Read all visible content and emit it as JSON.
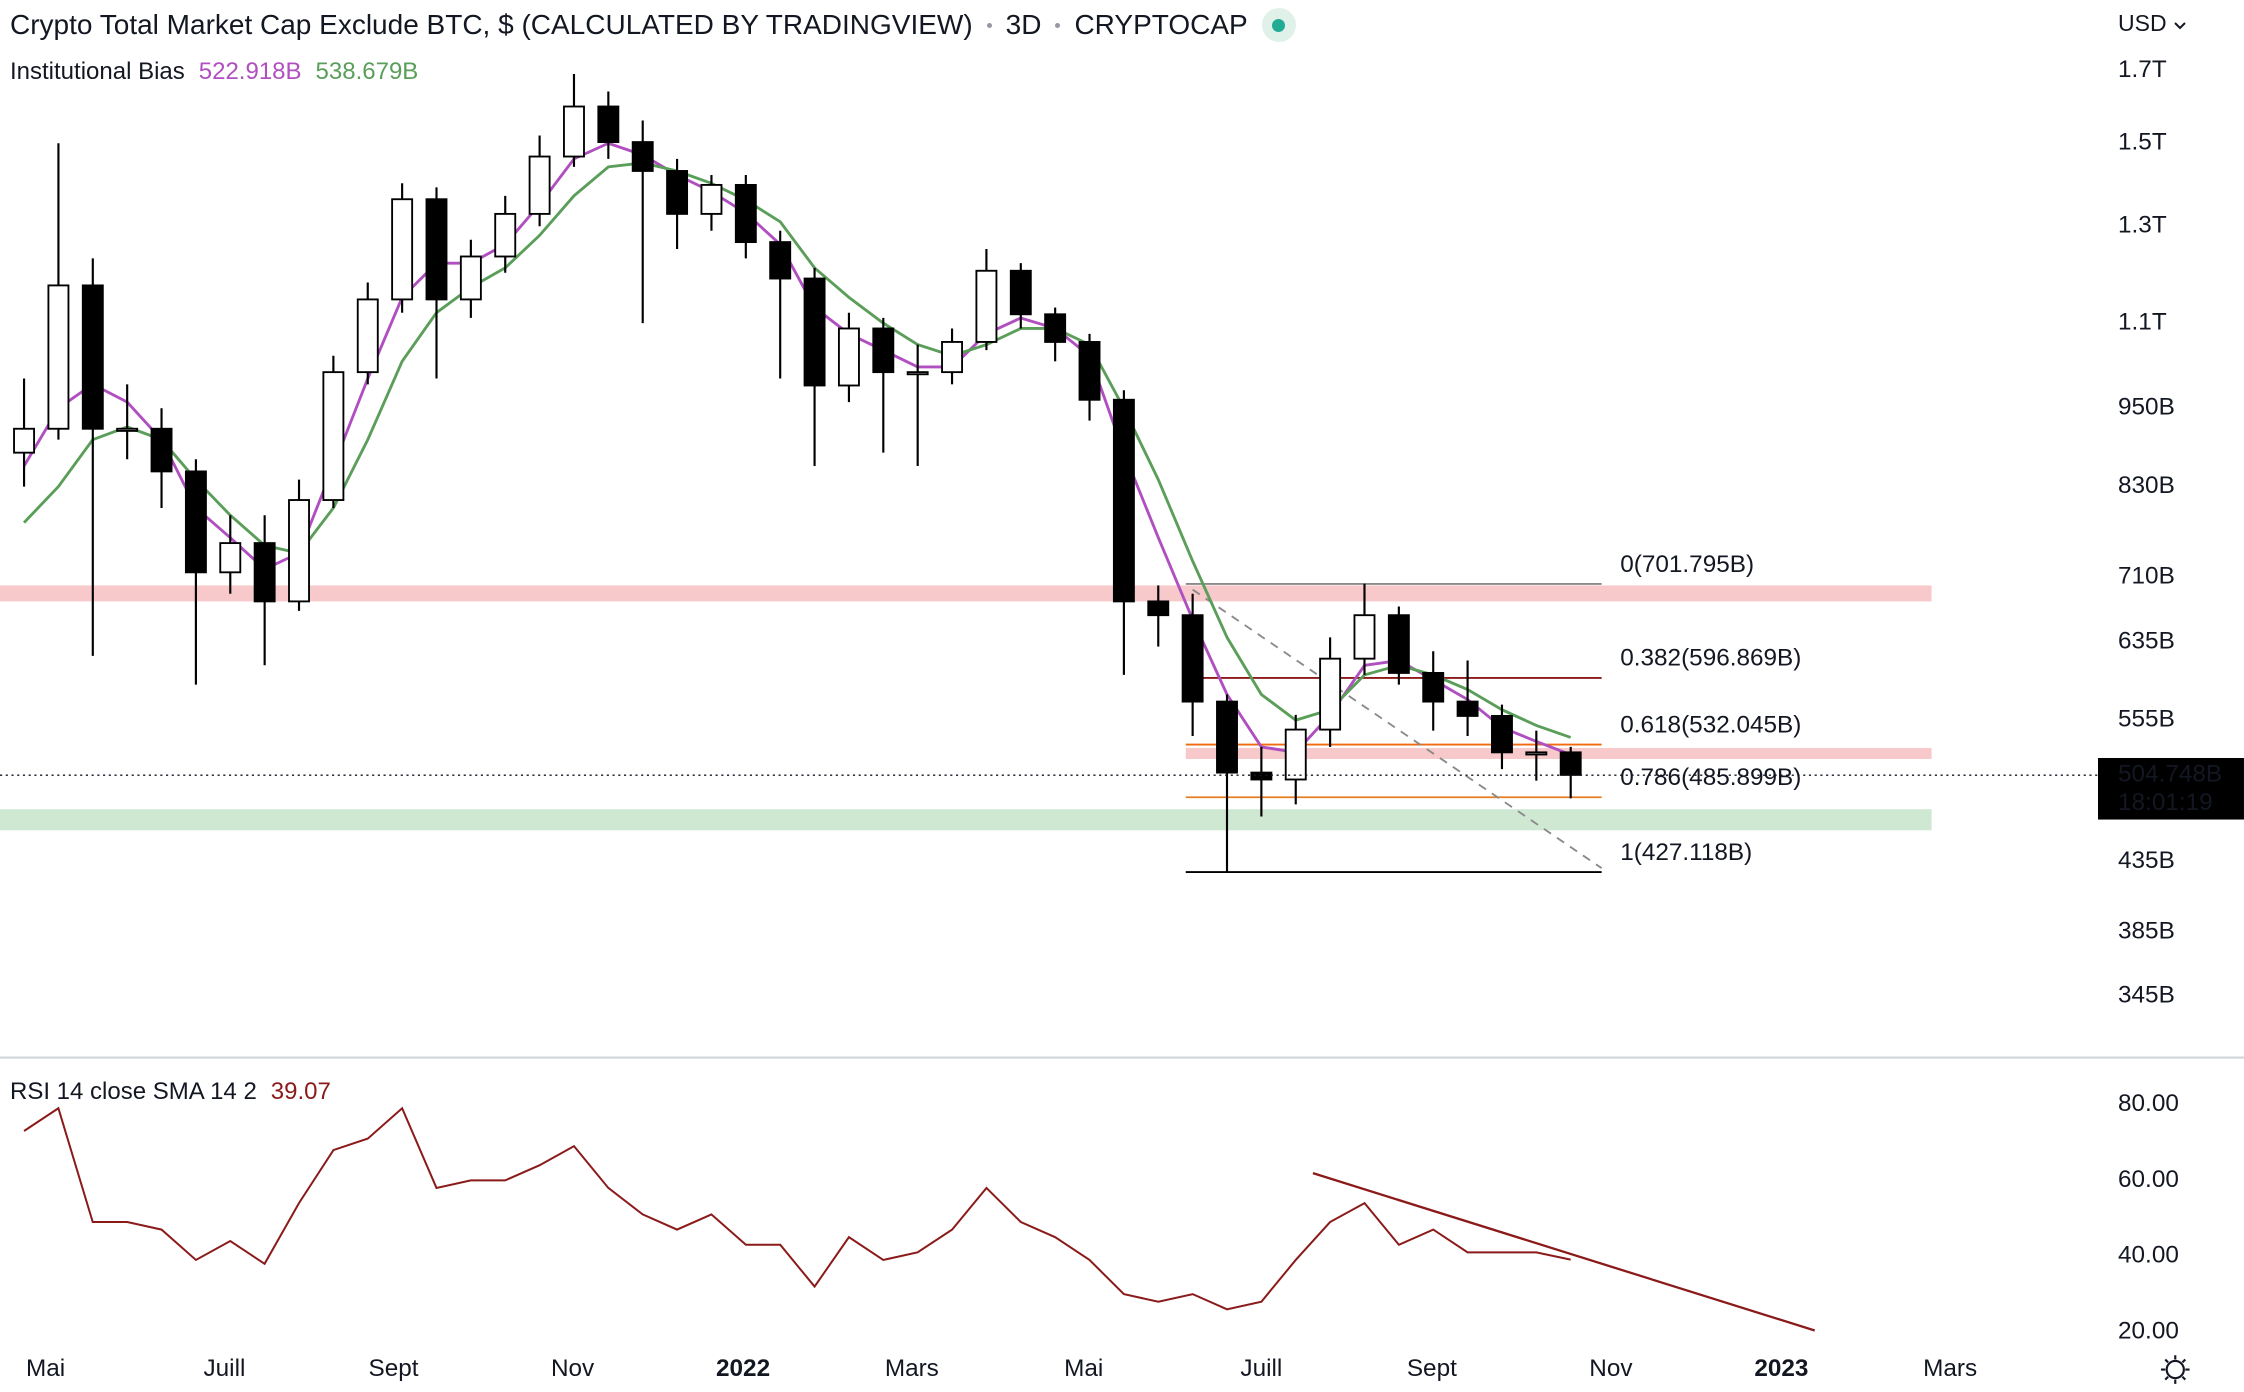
{
  "chart_data": [
    {
      "type": "candlestick",
      "title": "Crypto Total Market Cap Exclude BTC, $ (CALCULATED BY TRADINGVIEW)",
      "interval": "3D",
      "exchange": "CRYPTOCAP",
      "currency": "USD",
      "log_scale": true,
      "ylim": [
        311,
        1920
      ],
      "yticks": [
        {
          "value": 1700,
          "label": "1.7T"
        },
        {
          "value": 1500,
          "label": "1.5T"
        },
        {
          "value": 1300,
          "label": "1.3T"
        },
        {
          "value": 1100,
          "label": "1.1T"
        },
        {
          "value": 950,
          "label": "950B"
        },
        {
          "value": 830,
          "label": "830B"
        },
        {
          "value": 710,
          "label": "710B"
        },
        {
          "value": 635,
          "label": "635B"
        },
        {
          "value": 555,
          "label": "555B"
        },
        {
          "value": 435,
          "label": "435B"
        },
        {
          "value": 385,
          "label": "385B"
        },
        {
          "value": 345,
          "label": "345B"
        }
      ],
      "xlim": [
        -0.7,
        60.3
      ],
      "open": [
        880,
        917,
        1174,
        917,
        917,
        852,
        716,
        753,
        681,
        811,
        1011,
        1146,
        1362,
        1146,
        1234,
        1328,
        1466,
        1598,
        1503,
        1430,
        1328,
        1396,
        1265,
        1188,
        988,
        1090,
        1011,
        1011,
        1065,
        1204,
        1117,
        1065,
        964,
        681,
        665,
        573,
        507,
        501,
        546,
        617,
        665,
        602,
        573,
        559,
        525,
        525
      ],
      "high": [
        1000,
        1500,
        1230,
        990,
        950,
        870,
        790,
        790,
        840,
        1040,
        1180,
        1400,
        1390,
        1270,
        1370,
        1520,
        1690,
        1640,
        1560,
        1460,
        1420,
        1420,
        1290,
        1210,
        1120,
        1110,
        1060,
        1090,
        1250,
        1220,
        1130,
        1080,
        980,
        700,
        690,
        580,
        530,
        560,
        640,
        702,
        675,
        625,
        615,
        570,
        545,
        530
      ],
      "low": [
        830,
        900,
        620,
        870,
        800,
        590,
        690,
        610,
        670,
        800,
        990,
        1120,
        1000,
        1110,
        1200,
        1300,
        1440,
        1460,
        1100,
        1250,
        1290,
        1230,
        1000,
        860,
        960,
        880,
        860,
        990,
        1050,
        1090,
        1030,
        930,
        600,
        630,
        540,
        427,
        470,
        480,
        530,
        600,
        590,
        545,
        540,
        510,
        500,
        485
      ],
      "close": [
        917,
        1174,
        917,
        917,
        852,
        716,
        753,
        681,
        811,
        1011,
        1146,
        1362,
        1146,
        1234,
        1328,
        1466,
        1598,
        1503,
        1430,
        1328,
        1396,
        1265,
        1188,
        988,
        1090,
        1011,
        1011,
        1065,
        1204,
        1117,
        1065,
        964,
        681,
        665,
        573,
        507,
        501,
        546,
        617,
        665,
        602,
        573,
        559,
        525,
        525,
        505
      ],
      "up_color": "#ffffff",
      "down_color": "#000000",
      "indicator": "Institutional Bias",
      "series": [
        {
          "color": "#b04fc0",
          "legend_value": {
            "value": 522.918,
            "label": "522.918B"
          },
          "values": [
            860,
            950,
            990,
            960,
            900,
            800,
            760,
            720,
            740,
            860,
            1000,
            1150,
            1220,
            1220,
            1260,
            1350,
            1460,
            1500,
            1470,
            1420,
            1380,
            1330,
            1260,
            1130,
            1080,
            1050,
            1020,
            1020,
            1080,
            1110,
            1090,
            1040,
            880,
            760,
            660,
            580,
            530,
            525,
            560,
            610,
            615,
            595,
            575,
            548,
            535,
            522.918
          ]
        },
        {
          "color": "#5a9e5a",
          "legend_value": {
            "value": 538.679,
            "label": "538.679B"
          },
          "values": [
            780,
            830,
            900,
            920,
            900,
            840,
            790,
            750,
            740,
            800,
            900,
            1030,
            1120,
            1170,
            1210,
            1280,
            1370,
            1440,
            1450,
            1430,
            1400,
            1360,
            1310,
            1210,
            1150,
            1100,
            1060,
            1040,
            1060,
            1090,
            1090,
            1060,
            950,
            840,
            730,
            640,
            580,
            555,
            565,
            600,
            610,
            600,
            585,
            565,
            550,
            538.679
          ]
        }
      ],
      "last_price": {
        "value": 504.748,
        "label": "504.748B"
      },
      "countdown": "18:01:19",
      "fib": {
        "x": [
          33.8,
          45.9
        ],
        "levels": [
          {
            "value": 701.795,
            "label": "0(701.795B)",
            "color": "#8a8a8a"
          },
          {
            "value": 596.869,
            "label": "0.382(596.869B)",
            "color": "#8b1a1a"
          },
          {
            "value": 532.045,
            "label": "0.618(532.045B)",
            "color": "#f06a0f"
          },
          {
            "value": 485.899,
            "label": "0.786(485.899B)",
            "color": "#e67e22"
          },
          {
            "value": 427.118,
            "label": "1(427.118B)",
            "color": "#000000"
          }
        ]
      },
      "trendline": {
        "x": [
          34,
          45.9
        ],
        "y": [
          695,
          430
        ],
        "color": "#8a8a8a"
      },
      "zones": [
        {
          "x": [
            -0.7,
            55.5
          ],
          "y": [
            681,
            700
          ],
          "color": "#f8c9cb"
        },
        {
          "x": [
            33.8,
            55.5
          ],
          "y": [
            519,
            529
          ],
          "color": "#f8c9cb"
        },
        {
          "x": [
            -0.7,
            55.5
          ],
          "y": [
            459,
            476
          ],
          "color": "#cfe8d2"
        }
      ]
    },
    {
      "type": "line",
      "title": "RSI 14 close SMA 14 2",
      "ylim": [
        15,
        92
      ],
      "yticks": [
        {
          "value": 80,
          "label": "80.00"
        },
        {
          "value": 60,
          "label": "60.00"
        },
        {
          "value": 40,
          "label": "40.00"
        },
        {
          "value": 20,
          "label": "20.00"
        }
      ],
      "xlim": [
        -0.7,
        60.3
      ],
      "xticks": [
        {
          "value": 0.625,
          "label": "Mai"
        },
        {
          "value": 5.83,
          "label": "Juill"
        },
        {
          "value": 10.75,
          "label": "Sept"
        },
        {
          "value": 15.96,
          "label": "Nov"
        },
        {
          "value": 20.92,
          "label": "2022",
          "bold": true
        },
        {
          "value": 25.83,
          "label": "Mars"
        },
        {
          "value": 30.83,
          "label": "Mai"
        },
        {
          "value": 36,
          "label": "Juill"
        },
        {
          "value": 40.96,
          "label": "Sept"
        },
        {
          "value": 46.17,
          "label": "Nov"
        },
        {
          "value": 51.13,
          "label": "2023",
          "bold": true
        },
        {
          "value": 56.04,
          "label": "Mars"
        }
      ],
      "series": [
        {
          "color": "#8b1a1a",
          "legend_value": 39.07,
          "values": [
            73,
            79,
            49,
            49,
            47,
            39,
            44,
            38,
            54,
            68,
            71,
            79,
            58,
            60,
            60,
            64,
            69,
            58,
            51,
            47,
            51,
            43,
            43,
            32,
            45,
            39,
            41,
            47,
            58,
            49,
            45,
            39,
            30,
            28,
            30,
            26,
            28,
            39,
            49,
            54,
            43,
            47,
            41,
            41,
            41,
            39.07
          ]
        }
      ],
      "trendline": {
        "x": [
          37.5,
          52.1
        ],
        "y": [
          61.9,
          20.4
        ],
        "color": "#8b1a1a"
      }
    }
  ]
}
